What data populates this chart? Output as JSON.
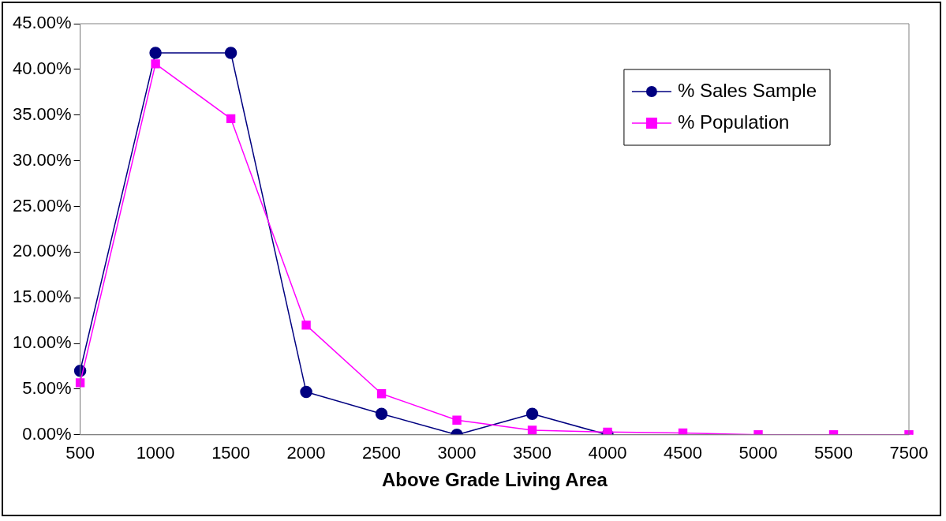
{
  "chart_data": {
    "type": "line",
    "xlabel": "Above Grade Living Area",
    "categories": [
      "500",
      "1000",
      "1500",
      "2000",
      "2500",
      "3000",
      "3500",
      "4000",
      "4500",
      "5000",
      "5500",
      "7500"
    ],
    "series": [
      {
        "name": "% Sales Sample",
        "color": "#000080",
        "marker": "circle",
        "values": [
          7.0,
          41.8,
          41.8,
          4.7,
          2.3,
          0,
          2.3,
          0,
          null,
          null,
          null,
          null
        ]
      },
      {
        "name": "% Population",
        "color": "#ff00ff",
        "marker": "square",
        "values": [
          5.7,
          40.6,
          34.6,
          12.0,
          4.5,
          1.6,
          0.5,
          0.3,
          0.2,
          0,
          0,
          0
        ]
      }
    ],
    "ylim": [
      0,
      45
    ],
    "yticks": [
      {
        "value": 0,
        "label": "0.00%"
      },
      {
        "value": 5,
        "label": "5.00%"
      },
      {
        "value": 10,
        "label": "10.00%"
      },
      {
        "value": 15,
        "label": "15.00%"
      },
      {
        "value": 20,
        "label": "20.00%"
      },
      {
        "value": 25,
        "label": "25.00%"
      },
      {
        "value": 30,
        "label": "30.00%"
      },
      {
        "value": 35,
        "label": "35.00%"
      },
      {
        "value": 40,
        "label": "40.00%"
      },
      {
        "value": 45,
        "label": "45.00%"
      }
    ],
    "grid": false,
    "legend": "top right"
  }
}
